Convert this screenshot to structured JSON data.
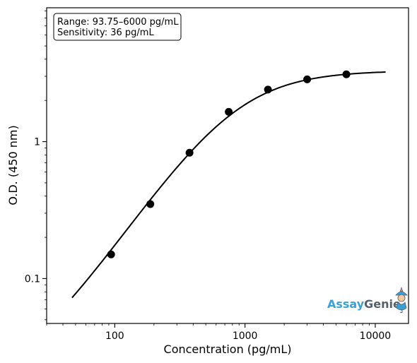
{
  "chart_data": {
    "type": "scatter",
    "title": "",
    "xlabel": "Concentration (pg/mL)",
    "ylabel": "O.D. (450 nm)",
    "xscale": "log",
    "yscale": "log",
    "xlim": [
      30,
      18000
    ],
    "ylim": [
      0.047,
      9.5
    ],
    "x_ticks": [
      100,
      1000,
      10000
    ],
    "x_tick_labels": [
      "100",
      "1000",
      "10000"
    ],
    "y_ticks": [
      0.1,
      1
    ],
    "y_tick_labels": [
      "0.1",
      "1"
    ],
    "points": {
      "x": [
        93.75,
        187.5,
        375,
        750,
        1500,
        3000,
        6000
      ],
      "y": [
        0.15,
        0.35,
        0.83,
        1.65,
        2.4,
        2.85,
        3.1
      ]
    },
    "fit_curve": {
      "model": "4PL",
      "A": 0.015,
      "D": 3.3,
      "C": 835,
      "B": 1.4,
      "x_range": [
        47,
        12000
      ]
    },
    "annotation": {
      "line1": "Range: 93.75–6000 pg/mL",
      "line2": "Sensitivity: 36 pg/mL",
      "placement": "top-left"
    },
    "grid": false,
    "legend": "none"
  },
  "logo": {
    "part1": "Assay",
    "part2": "Genie",
    "placement": "bottom-right"
  }
}
